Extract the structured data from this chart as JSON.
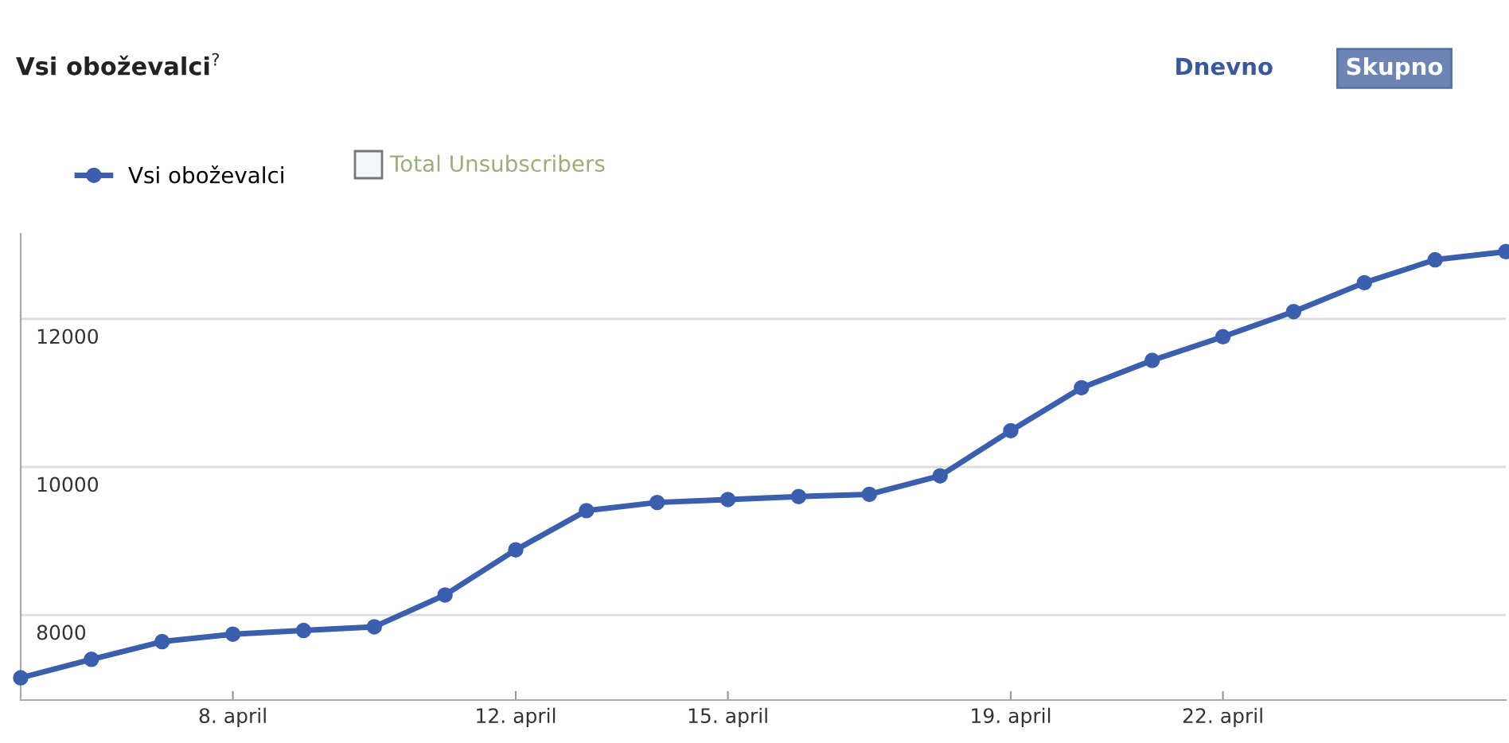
{
  "chart_data": {
    "type": "line",
    "title": "Vsi oboževalci$^{?}$",
    "annotations": [
      "Dnevno",
      "Skupno",
      "Total Unsubscribers"
    ],
    "categories": [
      null,
      null,
      null,
      "8. april",
      null,
      null,
      null,
      "12. april",
      null,
      null,
      "15. april",
      null,
      null,
      null,
      "19. april",
      null,
      null,
      "22. april",
      null,
      null,
      null,
      null
    ],
    "series": [
      {
        "name": "Vsi oboževalci",
        "color": "#3b5fad",
        "values": [
          7150,
          7400,
          7640,
          7740,
          7790,
          7840,
          8270,
          8880,
          9410,
          9520,
          9560,
          9600,
          9630,
          9880,
          10490,
          11070,
          11440,
          11760,
          12100,
          12490,
          12800,
          12910
        ]
      }
    ],
    "ylim": [
      6850,
      13150
    ],
    "yticks": [
      8000,
      10000,
      12000
    ],
    "grid": "y",
    "legend": "top left",
    "marker": "circle",
    "line_style": "solid"
  }
}
